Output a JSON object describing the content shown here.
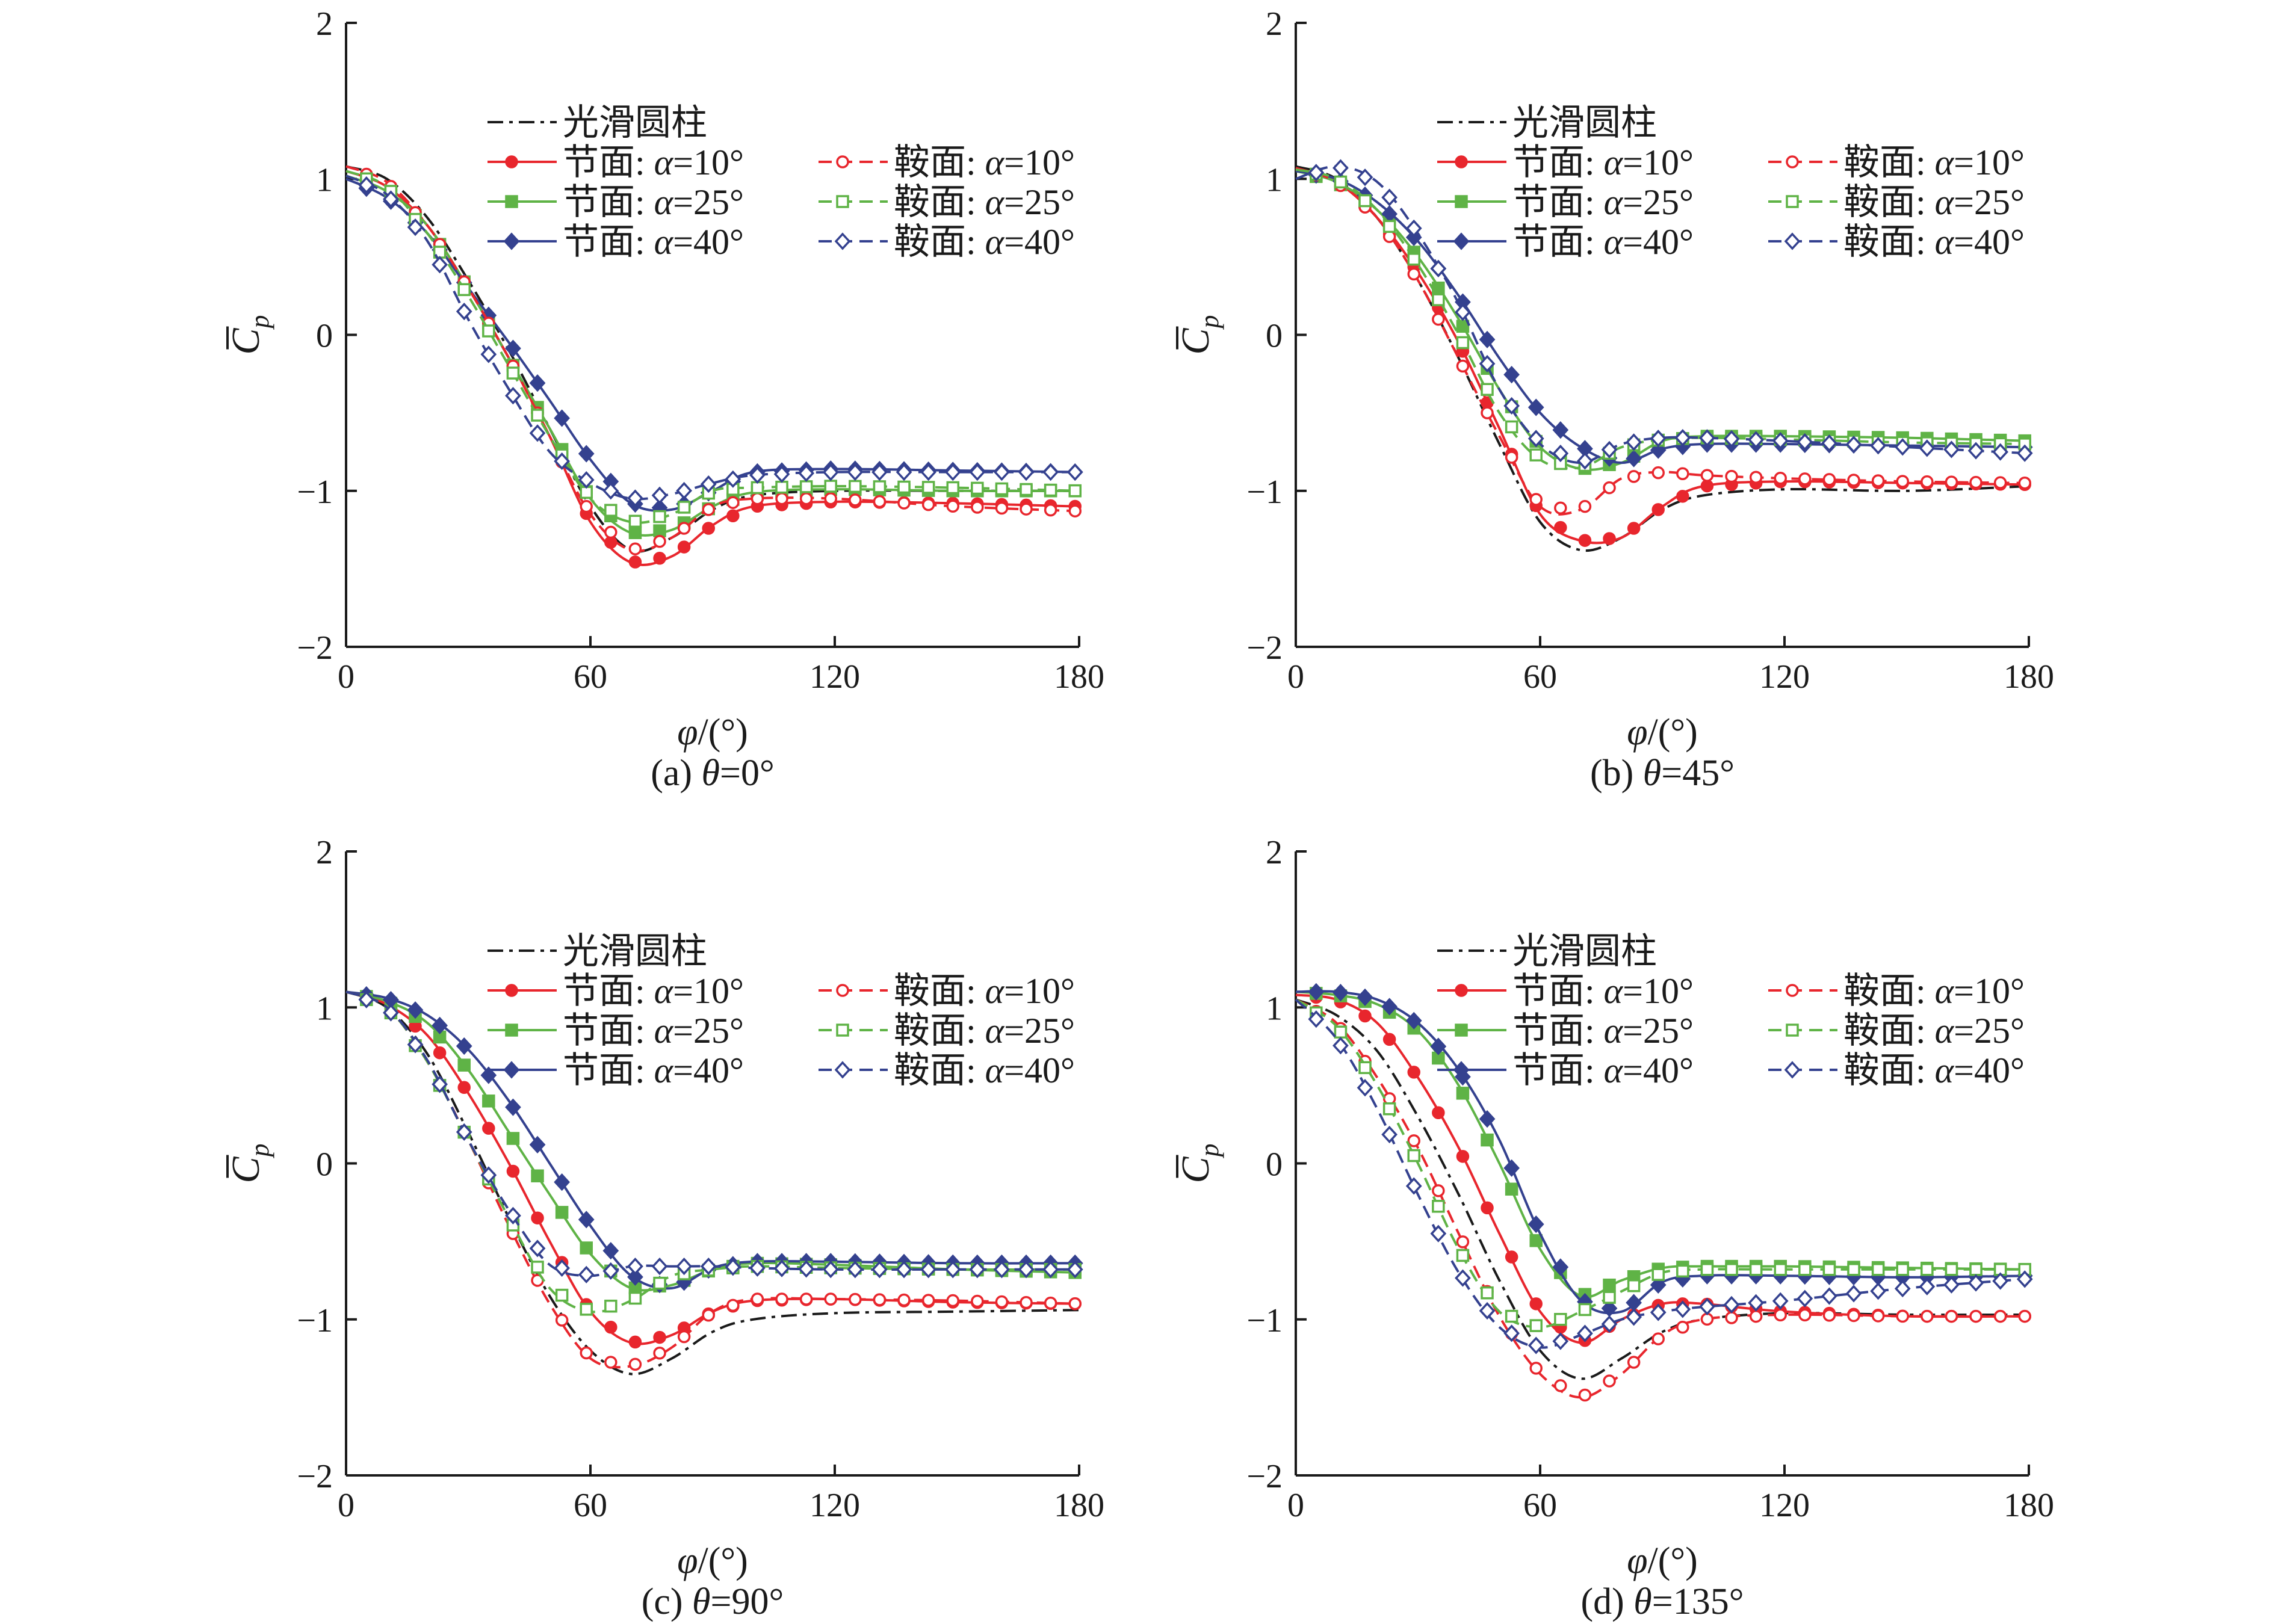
{
  "legend": {
    "entries": [
      {
        "prefix": "光滑圆柱",
        "var": "",
        "suffix": "",
        "color": "#1a1a1a",
        "dash": "dashdot",
        "marker": "none"
      },
      {
        "prefix": "节面: ",
        "var": "α",
        "suffix": "=10°",
        "color": "#e8262d",
        "dash": "solid",
        "marker": "circle"
      },
      {
        "prefix": "节面: ",
        "var": "α",
        "suffix": "=25°",
        "color": "#5fb346",
        "dash": "solid",
        "marker": "square"
      },
      {
        "prefix": "节面: ",
        "var": "α",
        "suffix": "=40°",
        "color": "#34418f",
        "dash": "solid",
        "marker": "diamond"
      },
      {
        "prefix": "鞍面: ",
        "var": "α",
        "suffix": "=10°",
        "color": "#e8262d",
        "dash": "dashed",
        "marker": "circle-open"
      },
      {
        "prefix": "鞍面: ",
        "var": "α",
        "suffix": "=25°",
        "color": "#5fb346",
        "dash": "dashed",
        "marker": "square-open"
      },
      {
        "prefix": "鞍面: ",
        "var": "α",
        "suffix": "=40°",
        "color": "#34418f",
        "dash": "dashed",
        "marker": "diamond-open"
      }
    ]
  },
  "chart_data": [
    {
      "type": "line",
      "caption": {
        "prefix": "(a) ",
        "var": "θ",
        "suffix": "=0°"
      },
      "xlabel": {
        "var": "φ",
        "suffix": "/(°)"
      },
      "ylabel": {
        "main": "C",
        "sub": "p"
      },
      "xlim": [
        0,
        180
      ],
      "ylim": [
        -2,
        2
      ],
      "xticks": [
        "0",
        "60",
        "120",
        "180"
      ],
      "yticks": [
        "−2",
        "−1",
        "0",
        "1",
        "2"
      ],
      "x": [
        0,
        10,
        20,
        30,
        40,
        50,
        60,
        70,
        80,
        90,
        100,
        120,
        150,
        180
      ],
      "series": [
        {
          "name": "光滑圆柱",
          "values": [
            1.08,
            1.0,
            0.75,
            0.35,
            -0.1,
            -0.6,
            -1.1,
            -1.38,
            -1.3,
            -1.12,
            -1.03,
            -1.0,
            -1.0,
            -1.0
          ]
        },
        {
          "name": "节面: α=10°",
          "values": [
            1.05,
            0.95,
            0.7,
            0.3,
            -0.15,
            -0.65,
            -1.2,
            -1.46,
            -1.42,
            -1.22,
            -1.1,
            -1.07,
            -1.08,
            -1.1
          ]
        },
        {
          "name": "节面: α=25°",
          "values": [
            1.02,
            0.92,
            0.7,
            0.3,
            -0.15,
            -0.6,
            -1.05,
            -1.27,
            -1.25,
            -1.1,
            -1.01,
            -0.99,
            -1.0,
            -1.0
          ]
        },
        {
          "name": "节面: α=40°",
          "values": [
            1.0,
            0.88,
            0.65,
            0.3,
            -0.05,
            -0.42,
            -0.8,
            -1.08,
            -1.12,
            -1.0,
            -0.88,
            -0.86,
            -0.87,
            -0.88
          ]
        },
        {
          "name": "鞍面: α=10°",
          "values": [
            1.08,
            0.98,
            0.7,
            0.3,
            -0.15,
            -0.65,
            -1.15,
            -1.38,
            -1.3,
            -1.1,
            -1.05,
            -1.05,
            -1.1,
            -1.13
          ]
        },
        {
          "name": "鞍面: α=25°",
          "values": [
            1.05,
            0.95,
            0.65,
            0.25,
            -0.2,
            -0.65,
            -1.05,
            -1.2,
            -1.15,
            -1.0,
            -0.98,
            -0.97,
            -0.98,
            -1.0
          ]
        },
        {
          "name": "鞍面: α=40°",
          "values": [
            1.02,
            0.9,
            0.6,
            0.1,
            -0.35,
            -0.75,
            -0.95,
            -1.05,
            -1.02,
            -0.95,
            -0.9,
            -0.88,
            -0.88,
            -0.88
          ]
        }
      ]
    },
    {
      "type": "line",
      "caption": {
        "prefix": "(b) ",
        "var": "θ",
        "suffix": "=45°"
      },
      "xlabel": {
        "var": "φ",
        "suffix": "/(°)"
      },
      "ylabel": {
        "main": "C",
        "sub": "p"
      },
      "xlim": [
        0,
        180
      ],
      "ylim": [
        -2,
        2
      ],
      "xticks": [
        "0",
        "60",
        "120",
        "180"
      ],
      "yticks": [
        "−2",
        "−1",
        "0",
        "1",
        "2"
      ],
      "x": [
        0,
        10,
        20,
        30,
        40,
        50,
        60,
        70,
        80,
        90,
        100,
        120,
        150,
        180
      ],
      "series": [
        {
          "name": "光滑圆柱",
          "values": [
            1.08,
            1.0,
            0.75,
            0.35,
            -0.15,
            -0.7,
            -1.2,
            -1.38,
            -1.3,
            -1.12,
            -1.03,
            -0.99,
            -1.0,
            -0.97
          ]
        },
        {
          "name": "节面: α=10°",
          "values": [
            1.06,
            0.98,
            0.75,
            0.4,
            -0.05,
            -0.6,
            -1.15,
            -1.32,
            -1.3,
            -1.1,
            -0.97,
            -0.94,
            -0.95,
            -0.96
          ]
        },
        {
          "name": "节面: α=25°",
          "values": [
            1.05,
            0.98,
            0.8,
            0.5,
            0.1,
            -0.35,
            -0.72,
            -0.86,
            -0.82,
            -0.68,
            -0.65,
            -0.65,
            -0.66,
            -0.68
          ]
        },
        {
          "name": "节面: α=40°",
          "values": [
            1.05,
            1.0,
            0.85,
            0.6,
            0.25,
            -0.15,
            -0.5,
            -0.72,
            -0.82,
            -0.73,
            -0.7,
            -0.7,
            -0.71,
            -0.72
          ]
        },
        {
          "name": "鞍面: α=10°",
          "values": [
            1.07,
            0.98,
            0.75,
            0.35,
            -0.15,
            -0.65,
            -1.1,
            -1.12,
            -0.92,
            -0.88,
            -0.9,
            -0.92,
            -0.94,
            -0.95
          ]
        },
        {
          "name": "鞍面: α=25°",
          "values": [
            1.06,
            1.0,
            0.8,
            0.45,
            0.0,
            -0.5,
            -0.8,
            -0.85,
            -0.72,
            -0.67,
            -0.66,
            -0.67,
            -0.69,
            -0.7
          ]
        },
        {
          "name": "鞍面: α=40°",
          "values": [
            1.0,
            1.08,
            0.98,
            0.65,
            0.2,
            -0.35,
            -0.7,
            -0.82,
            -0.7,
            -0.66,
            -0.66,
            -0.68,
            -0.72,
            -0.76
          ]
        }
      ]
    },
    {
      "type": "line",
      "caption": {
        "prefix": "(c) ",
        "var": "θ",
        "suffix": "=90°"
      },
      "xlabel": {
        "var": "φ",
        "suffix": "/(°)"
      },
      "ylabel": {
        "main": "C",
        "sub": "p"
      },
      "xlim": [
        0,
        180
      ],
      "ylim": [
        -2,
        2
      ],
      "xticks": [
        "0",
        "60",
        "120",
        "180"
      ],
      "yticks": [
        "−2",
        "−1",
        "0",
        "1",
        "2"
      ],
      "x": [
        0,
        10,
        20,
        30,
        40,
        50,
        60,
        70,
        80,
        90,
        100,
        120,
        150,
        180
      ],
      "series": [
        {
          "name": "光滑圆柱",
          "values": [
            1.1,
            1.0,
            0.7,
            0.2,
            -0.35,
            -0.85,
            -1.2,
            -1.35,
            -1.25,
            -1.08,
            -1.0,
            -0.96,
            -0.95,
            -0.94
          ]
        },
        {
          "name": "节面: α=10°",
          "values": [
            1.1,
            1.02,
            0.82,
            0.45,
            0.0,
            -0.5,
            -0.95,
            -1.15,
            -1.1,
            -0.95,
            -0.88,
            -0.87,
            -0.89,
            -0.9
          ]
        },
        {
          "name": "节面: α=25°",
          "values": [
            1.1,
            1.04,
            0.9,
            0.6,
            0.2,
            -0.2,
            -0.58,
            -0.8,
            -0.78,
            -0.68,
            -0.64,
            -0.65,
            -0.68,
            -0.7
          ]
        },
        {
          "name": "节面: α=40°",
          "values": [
            1.1,
            1.06,
            0.95,
            0.73,
            0.4,
            0.0,
            -0.4,
            -0.72,
            -0.8,
            -0.67,
            -0.63,
            -0.63,
            -0.64,
            -0.64
          ]
        },
        {
          "name": "鞍面: α=10°",
          "values": [
            1.1,
            1.0,
            0.65,
            0.15,
            -0.4,
            -0.9,
            -1.25,
            -1.3,
            -1.18,
            -0.95,
            -0.87,
            -0.87,
            -0.88,
            -0.9
          ]
        },
        {
          "name": "鞍面: α=25°",
          "values": [
            1.1,
            1.0,
            0.65,
            0.15,
            -0.35,
            -0.8,
            -0.95,
            -0.88,
            -0.72,
            -0.68,
            -0.66,
            -0.67,
            -0.68,
            -0.68
          ]
        },
        {
          "name": "鞍面: α=40°",
          "values": [
            1.1,
            1.0,
            0.66,
            0.15,
            -0.3,
            -0.65,
            -0.72,
            -0.66,
            -0.66,
            -0.66,
            -0.67,
            -0.68,
            -0.68,
            -0.68
          ]
        }
      ]
    },
    {
      "type": "line",
      "caption": {
        "prefix": "(d) ",
        "var": "θ",
        "suffix": "=135°"
      },
      "xlabel": {
        "var": "φ",
        "suffix": "/(°)"
      },
      "ylabel": {
        "main": "C",
        "sub": "p"
      },
      "xlim": [
        0,
        180
      ],
      "ylim": [
        -2,
        2
      ],
      "xticks": [
        "0",
        "60",
        "120",
        "180"
      ],
      "yticks": [
        "−2",
        "−1",
        "0",
        "1",
        "2"
      ],
      "x": [
        0,
        10,
        20,
        30,
        40,
        50,
        60,
        70,
        80,
        90,
        100,
        120,
        150,
        180
      ],
      "series": [
        {
          "name": "光滑圆柱",
          "values": [
            1.05,
            0.95,
            0.72,
            0.3,
            -0.2,
            -0.75,
            -1.2,
            -1.38,
            -1.25,
            -1.08,
            -1.0,
            -0.96,
            -0.97,
            -0.97
          ]
        },
        {
          "name": "节面: α=10°",
          "values": [
            1.08,
            1.05,
            0.9,
            0.55,
            0.1,
            -0.45,
            -0.95,
            -1.15,
            -1.0,
            -0.9,
            -0.9,
            -0.95,
            -0.98,
            -0.98
          ]
        },
        {
          "name": "节面: α=25°",
          "values": [
            1.1,
            1.08,
            1.02,
            0.85,
            0.5,
            0.0,
            -0.55,
            -0.85,
            -0.75,
            -0.67,
            -0.66,
            -0.66,
            -0.67,
            -0.68
          ]
        },
        {
          "name": "节面: α=40°",
          "values": [
            1.1,
            1.1,
            1.05,
            0.9,
            0.6,
            0.15,
            -0.45,
            -0.88,
            -0.95,
            -0.76,
            -0.72,
            -0.72,
            -0.73,
            -0.72
          ]
        },
        {
          "name": "鞍面: α=10°",
          "values": [
            1.05,
            0.9,
            0.55,
            0.1,
            -0.45,
            -0.98,
            -1.35,
            -1.5,
            -1.35,
            -1.1,
            -1.0,
            -0.97,
            -0.98,
            -0.98
          ]
        },
        {
          "name": "鞍面: α=25°",
          "values": [
            1.05,
            0.88,
            0.5,
            0.0,
            -0.55,
            -0.95,
            -1.05,
            -0.95,
            -0.82,
            -0.7,
            -0.68,
            -0.68,
            -0.68,
            -0.68
          ]
        },
        {
          "name": "鞍面: α=40°",
          "values": [
            1.05,
            0.8,
            0.35,
            -0.2,
            -0.7,
            -1.05,
            -1.18,
            -1.1,
            -1.0,
            -0.95,
            -0.92,
            -0.88,
            -0.8,
            -0.74
          ]
        }
      ]
    }
  ]
}
